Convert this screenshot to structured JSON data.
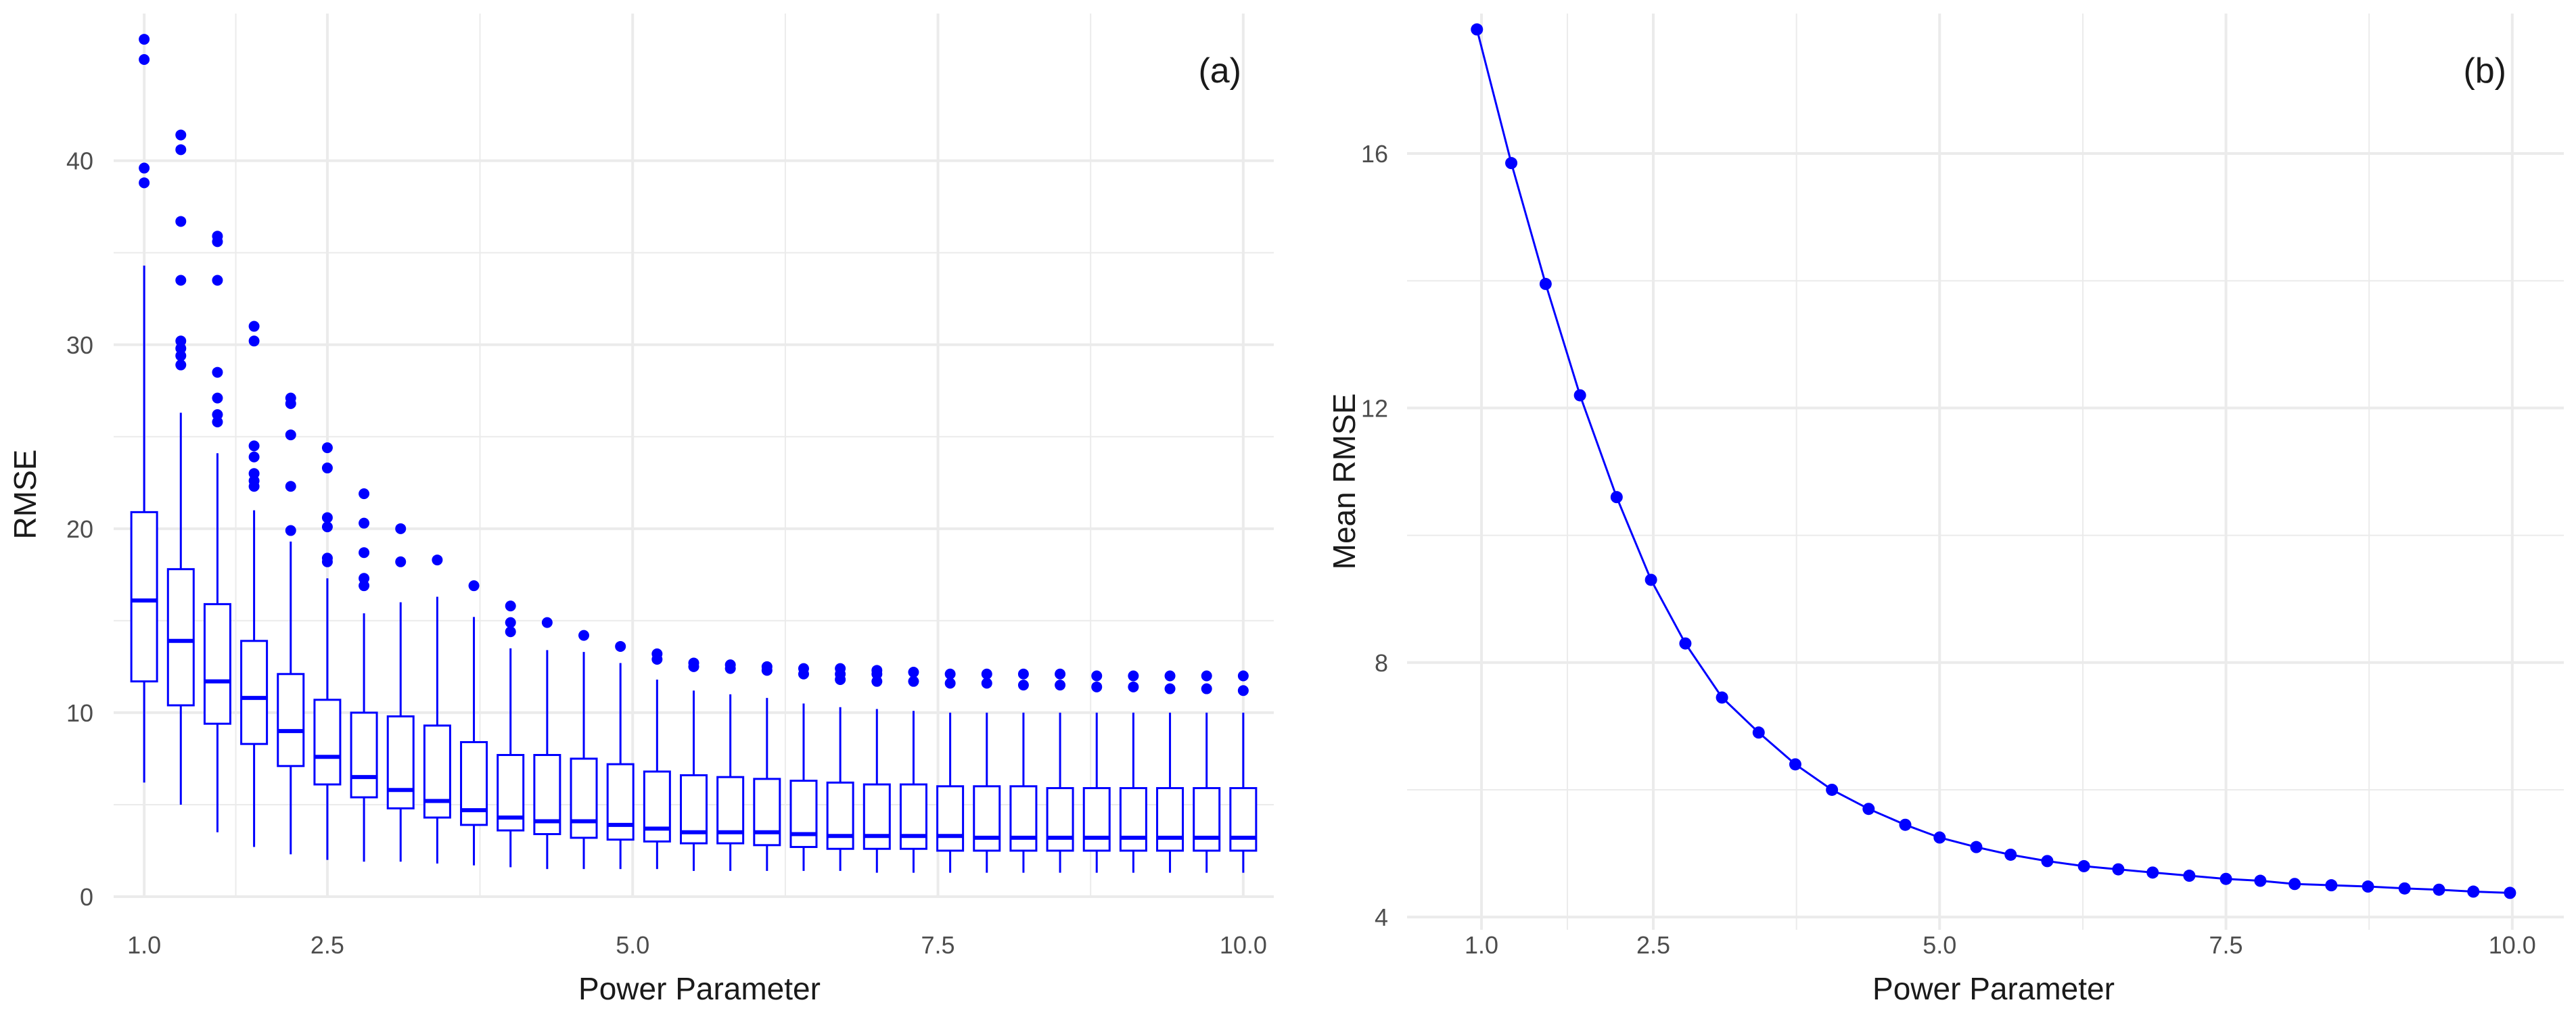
{
  "colors": {
    "series": "#0000ff",
    "grid": "#ebebeb",
    "background": "#ffffff"
  },
  "chart_data": [
    {
      "panel": "(a)",
      "type": "box",
      "xlabel": "Power Parameter",
      "ylabel": "RMSE",
      "xlim": [
        0.75,
        10.25
      ],
      "ylim": [
        0,
        48
      ],
      "xticks": [
        1.0,
        2.5,
        5.0,
        7.5,
        10.0
      ],
      "xtick_labels": [
        "1.0",
        "2.5",
        "5.0",
        "7.5",
        "10.0"
      ],
      "yticks": [
        0,
        10,
        20,
        30,
        40
      ],
      "ytick_labels": [
        "0",
        "10",
        "20",
        "30",
        "40"
      ],
      "grid": true,
      "x": [
        1.0,
        1.3,
        1.6,
        1.9,
        2.2,
        2.5,
        2.8,
        3.1,
        3.4,
        3.7,
        4.0,
        4.3,
        4.6,
        4.9,
        5.2,
        5.5,
        5.8,
        6.1,
        6.4,
        6.7,
        7.0,
        7.3,
        7.6,
        7.9,
        8.2,
        8.5,
        8.8,
        9.1,
        9.4,
        9.7,
        10.0
      ],
      "boxes": [
        {
          "x": 1.0,
          "whisker_low": 6.2,
          "q1": 11.7,
          "median": 16.1,
          "q3": 20.9,
          "whisker_high": 34.3,
          "outliers": [
            38.8,
            39.6,
            45.5,
            46.6
          ]
        },
        {
          "x": 1.3,
          "whisker_low": 5.0,
          "q1": 10.4,
          "median": 13.9,
          "q3": 17.8,
          "whisker_high": 26.3,
          "outliers": [
            28.9,
            29.4,
            29.8,
            30.2,
            33.5,
            36.7,
            40.6,
            41.4
          ]
        },
        {
          "x": 1.6,
          "whisker_low": 3.5,
          "q1": 9.4,
          "median": 11.7,
          "q3": 15.9,
          "whisker_high": 24.1,
          "outliers": [
            25.8,
            26.2,
            27.1,
            28.5,
            33.5,
            35.6,
            35.9
          ]
        },
        {
          "x": 1.9,
          "whisker_low": 2.7,
          "q1": 8.3,
          "median": 10.8,
          "q3": 13.9,
          "whisker_high": 21.0,
          "outliers": [
            22.3,
            22.6,
            23.0,
            23.9,
            24.5,
            30.2,
            31.0
          ]
        },
        {
          "x": 2.2,
          "whisker_low": 2.3,
          "q1": 7.1,
          "median": 9.0,
          "q3": 12.1,
          "whisker_high": 19.3,
          "outliers": [
            19.9,
            22.3,
            25.1,
            26.8,
            27.1
          ]
        },
        {
          "x": 2.5,
          "whisker_low": 2.0,
          "q1": 6.1,
          "median": 7.6,
          "q3": 10.7,
          "whisker_high": 17.3,
          "outliers": [
            18.2,
            18.4,
            20.1,
            20.6,
            23.3,
            24.4
          ]
        },
        {
          "x": 2.8,
          "whisker_low": 1.9,
          "q1": 5.4,
          "median": 6.5,
          "q3": 10.0,
          "whisker_high": 15.4,
          "outliers": [
            16.9,
            17.3,
            18.7,
            20.3,
            21.9
          ]
        },
        {
          "x": 3.1,
          "whisker_low": 1.9,
          "q1": 4.8,
          "median": 5.8,
          "q3": 9.8,
          "whisker_high": 16.0,
          "outliers": [
            18.2,
            20.0
          ]
        },
        {
          "x": 3.4,
          "whisker_low": 1.8,
          "q1": 4.3,
          "median": 5.2,
          "q3": 9.3,
          "whisker_high": 16.3,
          "outliers": [
            18.3
          ]
        },
        {
          "x": 3.7,
          "whisker_low": 1.7,
          "q1": 3.9,
          "median": 4.7,
          "q3": 8.4,
          "whisker_high": 15.2,
          "outliers": [
            16.9
          ]
        },
        {
          "x": 4.0,
          "whisker_low": 1.6,
          "q1": 3.6,
          "median": 4.3,
          "q3": 7.7,
          "whisker_high": 13.5,
          "outliers": [
            14.4,
            14.9,
            15.8
          ]
        },
        {
          "x": 4.3,
          "whisker_low": 1.5,
          "q1": 3.4,
          "median": 4.1,
          "q3": 7.7,
          "whisker_high": 13.4,
          "outliers": [
            14.9
          ]
        },
        {
          "x": 4.6,
          "whisker_low": 1.5,
          "q1": 3.2,
          "median": 4.1,
          "q3": 7.5,
          "whisker_high": 13.3,
          "outliers": [
            14.2
          ]
        },
        {
          "x": 4.9,
          "whisker_low": 1.5,
          "q1": 3.1,
          "median": 3.9,
          "q3": 7.2,
          "whisker_high": 12.7,
          "outliers": [
            13.6
          ]
        },
        {
          "x": 5.2,
          "whisker_low": 1.5,
          "q1": 3.0,
          "median": 3.7,
          "q3": 6.8,
          "whisker_high": 11.8,
          "outliers": [
            12.9,
            13.2
          ]
        },
        {
          "x": 5.5,
          "whisker_low": 1.4,
          "q1": 2.9,
          "median": 3.5,
          "q3": 6.6,
          "whisker_high": 11.2,
          "outliers": [
            12.5,
            12.7
          ]
        },
        {
          "x": 5.8,
          "whisker_low": 1.4,
          "q1": 2.9,
          "median": 3.5,
          "q3": 6.5,
          "whisker_high": 11.0,
          "outliers": [
            12.4,
            12.6
          ]
        },
        {
          "x": 6.1,
          "whisker_low": 1.4,
          "q1": 2.8,
          "median": 3.5,
          "q3": 6.4,
          "whisker_high": 10.8,
          "outliers": [
            12.3,
            12.5
          ]
        },
        {
          "x": 6.4,
          "whisker_low": 1.4,
          "q1": 2.7,
          "median": 3.4,
          "q3": 6.3,
          "whisker_high": 10.5,
          "outliers": [
            12.1,
            12.4
          ]
        },
        {
          "x": 6.7,
          "whisker_low": 1.4,
          "q1": 2.6,
          "median": 3.3,
          "q3": 6.2,
          "whisker_high": 10.3,
          "outliers": [
            11.8,
            12.1,
            12.4
          ]
        },
        {
          "x": 7.0,
          "whisker_low": 1.3,
          "q1": 2.6,
          "median": 3.3,
          "q3": 6.1,
          "whisker_high": 10.2,
          "outliers": [
            11.7,
            12.1,
            12.3
          ]
        },
        {
          "x": 7.3,
          "whisker_low": 1.3,
          "q1": 2.6,
          "median": 3.3,
          "q3": 6.1,
          "whisker_high": 10.1,
          "outliers": [
            11.7,
            12.2
          ]
        },
        {
          "x": 7.6,
          "whisker_low": 1.3,
          "q1": 2.5,
          "median": 3.3,
          "q3": 6.0,
          "whisker_high": 10.0,
          "outliers": [
            11.6,
            12.1
          ]
        },
        {
          "x": 7.9,
          "whisker_low": 1.3,
          "q1": 2.5,
          "median": 3.2,
          "q3": 6.0,
          "whisker_high": 10.0,
          "outliers": [
            11.6,
            12.1
          ]
        },
        {
          "x": 8.2,
          "whisker_low": 1.3,
          "q1": 2.5,
          "median": 3.2,
          "q3": 6.0,
          "whisker_high": 10.0,
          "outliers": [
            11.5,
            12.1
          ]
        },
        {
          "x": 8.5,
          "whisker_low": 1.3,
          "q1": 2.5,
          "median": 3.2,
          "q3": 5.9,
          "whisker_high": 10.0,
          "outliers": [
            11.5,
            12.1
          ]
        },
        {
          "x": 8.8,
          "whisker_low": 1.3,
          "q1": 2.5,
          "median": 3.2,
          "q3": 5.9,
          "whisker_high": 10.0,
          "outliers": [
            11.4,
            12.0
          ]
        },
        {
          "x": 9.1,
          "whisker_low": 1.3,
          "q1": 2.5,
          "median": 3.2,
          "q3": 5.9,
          "whisker_high": 10.0,
          "outliers": [
            11.4,
            12.0
          ]
        },
        {
          "x": 9.4,
          "whisker_low": 1.3,
          "q1": 2.5,
          "median": 3.2,
          "q3": 5.9,
          "whisker_high": 10.0,
          "outliers": [
            11.3,
            12.0
          ]
        },
        {
          "x": 9.7,
          "whisker_low": 1.3,
          "q1": 2.5,
          "median": 3.2,
          "q3": 5.9,
          "whisker_high": 10.0,
          "outliers": [
            11.3,
            12.0
          ]
        },
        {
          "x": 10.0,
          "whisker_low": 1.3,
          "q1": 2.5,
          "median": 3.2,
          "q3": 5.9,
          "whisker_high": 10.0,
          "outliers": [
            11.2,
            12.0
          ]
        }
      ]
    },
    {
      "panel": "(b)",
      "type": "line",
      "markers": true,
      "xlabel": "Power Parameter",
      "ylabel": "Mean RMSE",
      "xlim": [
        0.35,
        10.45
      ],
      "ylim": [
        3.8,
        18.2
      ],
      "xticks": [
        1.0,
        2.5,
        5.0,
        7.5,
        10.0
      ],
      "xtick_labels": [
        "1.0",
        "2.5",
        "5.0",
        "7.5",
        "10.0"
      ],
      "yticks": [
        4,
        8,
        12,
        16
      ],
      "ytick_labels": [
        "4",
        "8",
        "12",
        "16"
      ],
      "grid": true,
      "x": [
        0.96,
        1.26,
        1.56,
        1.86,
        2.18,
        2.48,
        2.78,
        3.1,
        3.42,
        3.74,
        4.06,
        4.38,
        4.7,
        5.0,
        5.32,
        5.62,
        5.94,
        6.26,
        6.56,
        6.86,
        7.18,
        7.5,
        7.8,
        8.1,
        8.42,
        8.74,
        9.06,
        9.36,
        9.66,
        9.98
      ],
      "values": [
        17.95,
        15.85,
        13.95,
        12.2,
        10.6,
        9.3,
        8.3,
        7.45,
        6.9,
        6.4,
        6.0,
        5.7,
        5.45,
        5.25,
        5.1,
        4.98,
        4.88,
        4.8,
        4.75,
        4.7,
        4.65,
        4.6,
        4.57,
        4.52,
        4.5,
        4.48,
        4.45,
        4.43,
        4.4,
        4.38
      ]
    }
  ]
}
